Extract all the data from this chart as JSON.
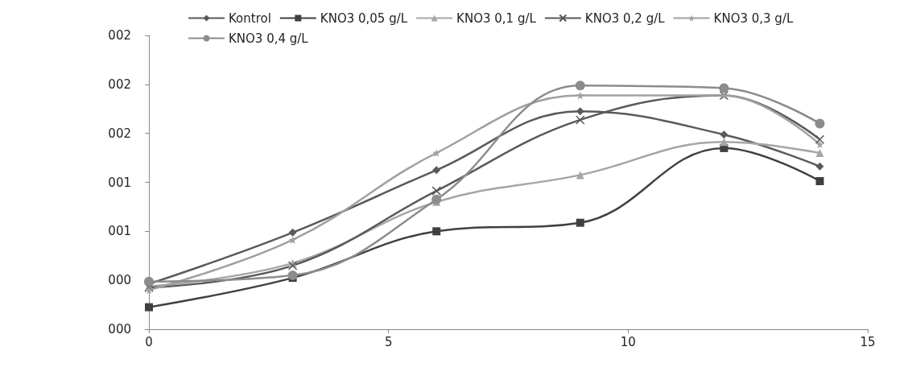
{
  "chart_data": {
    "type": "line",
    "x": [
      0,
      3,
      6,
      9,
      12,
      14
    ],
    "series": [
      {
        "name": "Kontrol",
        "color": "#5a5a5a",
        "marker": "diamond",
        "values": [
          0.37,
          0.79,
          1.3,
          1.78,
          1.59,
          1.33
        ]
      },
      {
        "name": "KNO3 0,05 g/L",
        "color": "#404040",
        "marker": "square",
        "values": [
          0.18,
          0.42,
          0.8,
          0.87,
          1.48,
          1.21
        ]
      },
      {
        "name": "KNO3 0,1 g/L",
        "color": "#a6a6a6",
        "marker": "triangle",
        "values": [
          0.35,
          0.54,
          1.04,
          1.26,
          1.53,
          1.44
        ]
      },
      {
        "name": "KNO3 0,2 g/L",
        "color": "#595959",
        "marker": "cross",
        "values": [
          0.34,
          0.52,
          1.13,
          1.71,
          1.91,
          1.55
        ]
      },
      {
        "name": "KNO3 0,3 g/L",
        "color": "#a0a0a0",
        "marker": "star",
        "values": [
          0.32,
          0.73,
          1.44,
          1.91,
          1.91,
          1.51
        ]
      },
      {
        "name": "KNO3 0,4 g/L",
        "color": "#8c8c8c",
        "marker": "circle",
        "values": [
          0.39,
          0.44,
          1.06,
          1.99,
          1.97,
          1.68
        ]
      }
    ],
    "xlim": [
      0,
      15
    ],
    "xticks": [
      0,
      5,
      10,
      15
    ],
    "ylim": [
      0,
      2.4
    ],
    "yticks": [
      {
        "value": 0,
        "label": "000"
      },
      {
        "value": 0.4,
        "label": "000"
      },
      {
        "value": 0.8,
        "label": "001"
      },
      {
        "value": 1.2,
        "label": "001"
      },
      {
        "value": 1.6,
        "label": "002"
      },
      {
        "value": 2,
        "label": "002"
      },
      {
        "value": 2.4,
        "label": "002"
      }
    ],
    "grid": false,
    "legend": "top"
  }
}
